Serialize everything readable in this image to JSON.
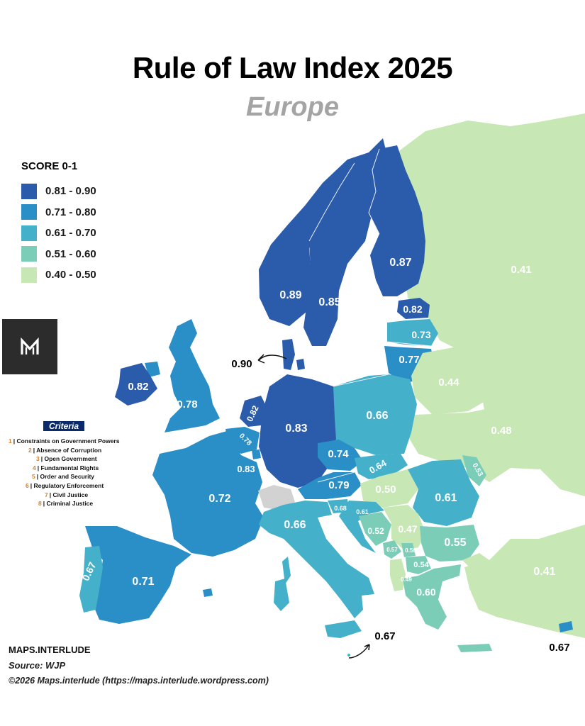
{
  "header": {
    "title": "Rule of Law Index 2025",
    "subtitle": "Europe"
  },
  "legend": {
    "title": "SCORE 0-1",
    "items": [
      {
        "label": "0.81 - 0.90",
        "color": "#2b5bab"
      },
      {
        "label": "0.71 - 0.80",
        "color": "#2a8ec7"
      },
      {
        "label": "0.61 - 0.70",
        "color": "#45b0ca"
      },
      {
        "label": "0.51 - 0.60",
        "color": "#7ccdb7"
      },
      {
        "label": "0.40 - 0.50",
        "color": "#c7e7b4"
      }
    ]
  },
  "criteria": {
    "title": "Criteria",
    "items": [
      {
        "num": "1",
        "label": "| Constraints on Government Powers"
      },
      {
        "num": "2",
        "label": "| Absence of Corruption"
      },
      {
        "num": "3",
        "label": "| Open Government"
      },
      {
        "num": "4",
        "label": "| Fundamental Rights"
      },
      {
        "num": "5",
        "label": "| Order and Security"
      },
      {
        "num": "6",
        "label": "| Regulatory Enforcement"
      },
      {
        "num": "7",
        "label": "| Civil Justice"
      },
      {
        "num": "8",
        "label": "| Criminal Justice"
      }
    ]
  },
  "footer": {
    "brand": "MAPS.INTERLUDE",
    "source": "Source: WJP",
    "copyright": "©2026 Maps.interlude (https://maps.interlude.wordpress.com)"
  },
  "map": {
    "no_data_color": "#d2d2d2",
    "sea_color": "#ffffff",
    "border_color": "#e8eef4",
    "score_labels": [
      {
        "name": "russia",
        "text": "0.41"
      },
      {
        "name": "finland",
        "text": "0.87"
      },
      {
        "name": "sweden",
        "text": "0.85"
      },
      {
        "name": "norway",
        "text": "0.89"
      },
      {
        "name": "estonia",
        "text": "0.82"
      },
      {
        "name": "latvia",
        "text": "0.73"
      },
      {
        "name": "lithuania",
        "text": "0.77"
      },
      {
        "name": "denmark",
        "text": "0.90"
      },
      {
        "name": "ireland",
        "text": "0.82"
      },
      {
        "name": "united-kingdom",
        "text": "0.78"
      },
      {
        "name": "belarus",
        "text": "0.44"
      },
      {
        "name": "poland",
        "text": "0.66"
      },
      {
        "name": "netherlands",
        "text": "0.82"
      },
      {
        "name": "belgium",
        "text": "0.78"
      },
      {
        "name": "germany",
        "text": "0.83"
      },
      {
        "name": "ukraine",
        "text": "0.48"
      },
      {
        "name": "czechia",
        "text": "0.74"
      },
      {
        "name": "slovakia",
        "text": "0.64"
      },
      {
        "name": "moldova",
        "text": "0.53"
      },
      {
        "name": "luxembourg",
        "text": "0.83"
      },
      {
        "name": "austria",
        "text": "0.79"
      },
      {
        "name": "hungary",
        "text": "0.50"
      },
      {
        "name": "romania",
        "text": "0.61"
      },
      {
        "name": "france",
        "text": "0.72"
      },
      {
        "name": "slovenia",
        "text": "0.68"
      },
      {
        "name": "croatia",
        "text": "0.61"
      },
      {
        "name": "italy",
        "text": "0.66"
      },
      {
        "name": "bosnia",
        "text": "0.52"
      },
      {
        "name": "serbia",
        "text": "0.47"
      },
      {
        "name": "bulgaria",
        "text": "0.55"
      },
      {
        "name": "montenegro",
        "text": "0.57"
      },
      {
        "name": "kosovo",
        "text": "0.56"
      },
      {
        "name": "north-macedonia",
        "text": "0.54"
      },
      {
        "name": "albania",
        "text": "0.49"
      },
      {
        "name": "greece",
        "text": "0.60"
      },
      {
        "name": "turkey",
        "text": "0.41"
      },
      {
        "name": "portugal",
        "text": "0.67"
      },
      {
        "name": "spain",
        "text": "0.71"
      },
      {
        "name": "malta",
        "text": "0.67"
      },
      {
        "name": "cyprus",
        "text": "0.67"
      }
    ]
  }
}
